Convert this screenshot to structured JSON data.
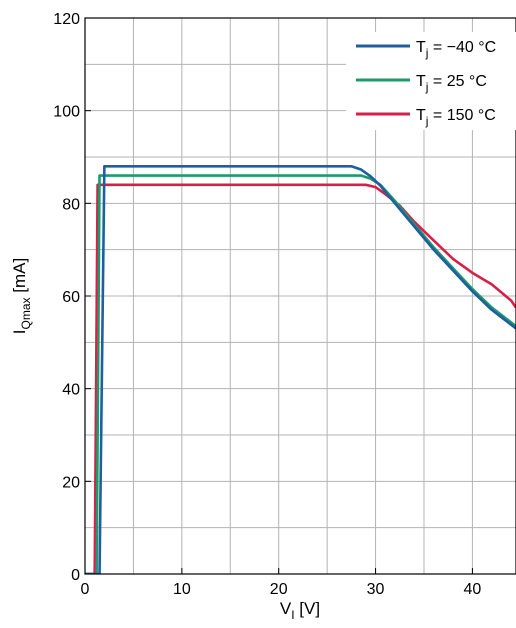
{
  "chart_data": {
    "type": "line",
    "xlabel": {
      "main": "V",
      "sub": "I",
      "unit": " [V]"
    },
    "ylabel": {
      "main": "I",
      "sub": "Qmax",
      "unit": " [mA]"
    },
    "xlim": [
      0,
      44.5
    ],
    "ylim": [
      0,
      120
    ],
    "xticks": [
      0,
      10,
      20,
      30,
      40
    ],
    "yticks": [
      0,
      20,
      40,
      60,
      80,
      100,
      120
    ],
    "xticks_labels": [
      "0",
      "10",
      "20",
      "30",
      "40"
    ],
    "yticks_labels": [
      "0",
      "20",
      "40",
      "60",
      "80",
      "100",
      "120"
    ],
    "grid": true,
    "legend_position": "top-right",
    "series": [
      {
        "name": "Tj = −40 °C",
        "legend": {
          "main": "T",
          "sub": "j",
          "rest": " = −40 °C"
        },
        "color": "#1f5fa0",
        "x": [
          0,
          1.5,
          2.0,
          27.5,
          28.5,
          29.5,
          30.5,
          32,
          34,
          36,
          38,
          40,
          42,
          44.5
        ],
        "y": [
          0,
          0,
          88,
          88,
          87.3,
          85.8,
          83.8,
          80,
          75,
          70,
          65.5,
          61,
          57,
          53
        ]
      },
      {
        "name": "Tj = 25 °C",
        "legend": {
          "main": "T",
          "sub": "j",
          "rest": " = 25 °C"
        },
        "color": "#1e9a6a",
        "x": [
          0,
          1.2,
          1.5,
          28.5,
          29.5,
          30.5,
          32,
          34,
          36,
          38,
          40,
          42,
          44.5
        ],
        "y": [
          0,
          0,
          86,
          86,
          85.3,
          84,
          80.5,
          75.5,
          70.5,
          66,
          61.5,
          57.5,
          53.5
        ]
      },
      {
        "name": "Tj = 150 °C",
        "legend": {
          "main": "T",
          "sub": "j",
          "rest": " = 150 °C"
        },
        "color": "#d6204a",
        "x": [
          0,
          1.0,
          1.3,
          29.0,
          30.0,
          31.0,
          32.5,
          34,
          36,
          38,
          40,
          42,
          44,
          44.5
        ],
        "y": [
          0,
          0,
          84,
          84,
          83.5,
          82,
          79.5,
          76,
          72,
          68,
          65,
          62.5,
          59,
          57.5
        ]
      }
    ]
  }
}
